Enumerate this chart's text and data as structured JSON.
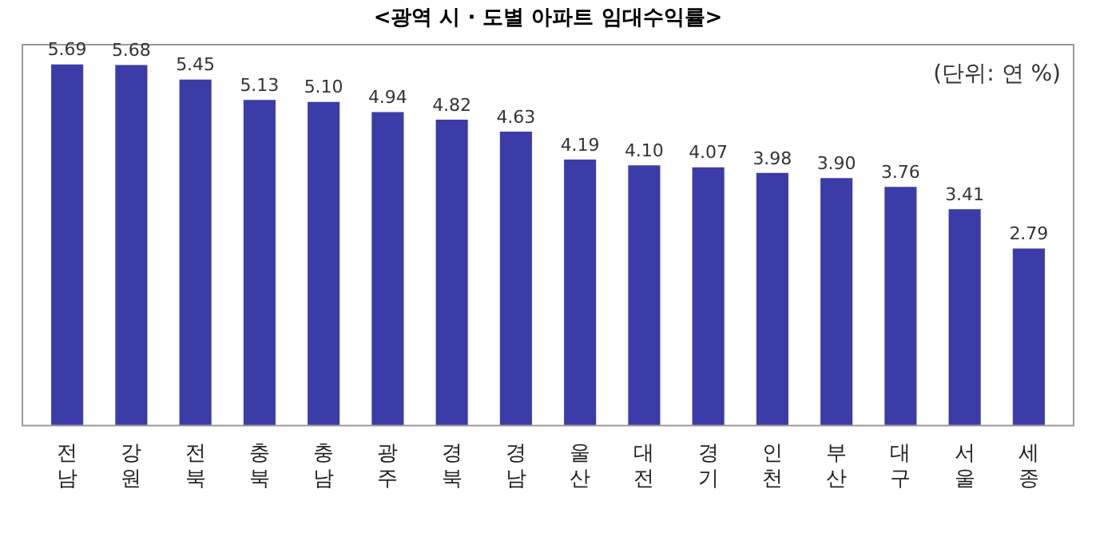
{
  "chart_data": {
    "type": "bar",
    "title": "<광역 시 · 도별 아파트 임대수익률>",
    "categories": [
      "전남",
      "강원",
      "전북",
      "충북",
      "충남",
      "광주",
      "경북",
      "경남",
      "울산",
      "대전",
      "경기",
      "인천",
      "부산",
      "대구",
      "서울",
      "세종"
    ],
    "values": [
      5.69,
      5.68,
      5.45,
      5.13,
      5.1,
      4.94,
      4.82,
      4.63,
      4.19,
      4.1,
      4.07,
      3.98,
      3.9,
      3.76,
      3.41,
      2.79
    ],
    "value_labels": [
      "5.69",
      "5.68",
      "5.45",
      "5.13",
      "5.10",
      "4.94",
      "4.82",
      "4.63",
      "4.19",
      "4.10",
      "4.07",
      "3.98",
      "3.90",
      "3.76",
      "3.41",
      "2.79"
    ],
    "color": "#3c3ca8",
    "grid": false,
    "legend": false,
    "annotations": [
      "(단위: 연 %)"
    ]
  }
}
